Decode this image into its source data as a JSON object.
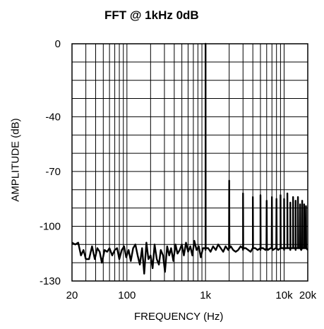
{
  "chart_data": {
    "type": "line",
    "title": "FFT @ 1kHz 0dB",
    "xlabel": "FREQUENCY (Hz)",
    "ylabel": "AMPLITUDE (dB)",
    "x_scale": "log",
    "xlim": [
      20,
      20000
    ],
    "ylim": [
      -130,
      0
    ],
    "x_ticks": [
      {
        "value": 20,
        "label": "20"
      },
      {
        "value": 100,
        "label": "100"
      },
      {
        "value": 1000,
        "label": "1k"
      },
      {
        "value": 10000,
        "label": "10k"
      },
      {
        "value": 20000,
        "label": "20k"
      }
    ],
    "y_ticks": [
      {
        "value": 0,
        "label": "0"
      },
      {
        "value": -40,
        "label": "-40"
      },
      {
        "value": -70,
        "label": "-70"
      },
      {
        "value": -100,
        "label": "-100"
      },
      {
        "value": -130,
        "label": "-130"
      }
    ],
    "grid": true,
    "y_grid_step": 10,
    "noise_points": [
      [
        20,
        -109
      ],
      [
        22,
        -110
      ],
      [
        24,
        -109
      ],
      [
        26,
        -116
      ],
      [
        28,
        -113
      ],
      [
        30,
        -118
      ],
      [
        33,
        -118
      ],
      [
        36,
        -111
      ],
      [
        39,
        -118
      ],
      [
        42,
        -112
      ],
      [
        45,
        -114
      ],
      [
        48,
        -120
      ],
      [
        52,
        -113
      ],
      [
        56,
        -114
      ],
      [
        60,
        -112
      ],
      [
        65,
        -116
      ],
      [
        70,
        -113
      ],
      [
        75,
        -112
      ],
      [
        80,
        -118
      ],
      [
        86,
        -113
      ],
      [
        92,
        -111
      ],
      [
        98,
        -117
      ],
      [
        105,
        -113
      ],
      [
        112,
        -119
      ],
      [
        120,
        -112
      ],
      [
        128,
        -110
      ],
      [
        137,
        -116
      ],
      [
        146,
        -121
      ],
      [
        156,
        -112
      ],
      [
        166,
        -126
      ],
      [
        177,
        -109
      ],
      [
        188,
        -118
      ],
      [
        200,
        -116
      ],
      [
        212,
        -123
      ],
      [
        225,
        -110
      ],
      [
        240,
        -118
      ],
      [
        255,
        -121
      ],
      [
        270,
        -113
      ],
      [
        288,
        -116
      ],
      [
        305,
        -125
      ],
      [
        325,
        -111
      ],
      [
        345,
        -116
      ],
      [
        365,
        -112
      ],
      [
        390,
        -119
      ],
      [
        415,
        -110
      ],
      [
        440,
        -115
      ],
      [
        470,
        -113
      ],
      [
        500,
        -110
      ],
      [
        530,
        -116
      ],
      [
        565,
        -109
      ],
      [
        600,
        -114
      ],
      [
        640,
        -111
      ],
      [
        680,
        -116
      ],
      [
        720,
        -108
      ],
      [
        770,
        -113
      ],
      [
        820,
        -111
      ],
      [
        870,
        -117
      ],
      [
        930,
        -112
      ],
      [
        1000,
        -113
      ],
      [
        1080,
        -112
      ],
      [
        1160,
        -114
      ],
      [
        1250,
        -111
      ],
      [
        1350,
        -113
      ],
      [
        1450,
        -110
      ],
      [
        1560,
        -112
      ],
      [
        1680,
        -114
      ],
      [
        1800,
        -111
      ],
      [
        1950,
        -113
      ],
      [
        2100,
        -111
      ],
      [
        2250,
        -113
      ],
      [
        2420,
        -114
      ],
      [
        2600,
        -113
      ],
      [
        2800,
        -111
      ],
      [
        3000,
        -113
      ],
      [
        3250,
        -112
      ],
      [
        3500,
        -113
      ],
      [
        3750,
        -114
      ],
      [
        4000,
        -112
      ],
      [
        4300,
        -112
      ],
      [
        4600,
        -113
      ],
      [
        5000,
        -113
      ],
      [
        5400,
        -112
      ],
      [
        5800,
        -113
      ],
      [
        6200,
        -113
      ],
      [
        6700,
        -112
      ],
      [
        7200,
        -113
      ],
      [
        7800,
        -112
      ],
      [
        8400,
        -113
      ],
      [
        9000,
        -112
      ],
      [
        10000,
        -113
      ],
      [
        11000,
        -112
      ],
      [
        12000,
        -113
      ],
      [
        13000,
        -112
      ],
      [
        14000,
        -113
      ],
      [
        15000,
        -112
      ],
      [
        16500,
        -113
      ],
      [
        18000,
        -112
      ],
      [
        20000,
        -113
      ]
    ],
    "peaks": [
      {
        "freq": 1000,
        "amplitude": 0
      },
      {
        "freq": 2000,
        "amplitude": -75
      },
      {
        "freq": 3000,
        "amplitude": -82
      },
      {
        "freq": 4000,
        "amplitude": -84
      },
      {
        "freq": 5000,
        "amplitude": -83
      },
      {
        "freq": 6000,
        "amplitude": -86
      },
      {
        "freq": 7000,
        "amplitude": -84
      },
      {
        "freq": 8000,
        "amplitude": -85
      },
      {
        "freq": 9000,
        "amplitude": -83
      },
      {
        "freq": 10000,
        "amplitude": -85
      },
      {
        "freq": 11000,
        "amplitude": -82
      },
      {
        "freq": 12000,
        "amplitude": -87
      },
      {
        "freq": 13000,
        "amplitude": -84
      },
      {
        "freq": 14000,
        "amplitude": -86
      },
      {
        "freq": 15000,
        "amplitude": -84
      },
      {
        "freq": 16000,
        "amplitude": -88
      },
      {
        "freq": 17000,
        "amplitude": -86
      },
      {
        "freq": 18000,
        "amplitude": -88
      },
      {
        "freq": 19000,
        "amplitude": -89
      }
    ],
    "line_color": "#000000"
  }
}
